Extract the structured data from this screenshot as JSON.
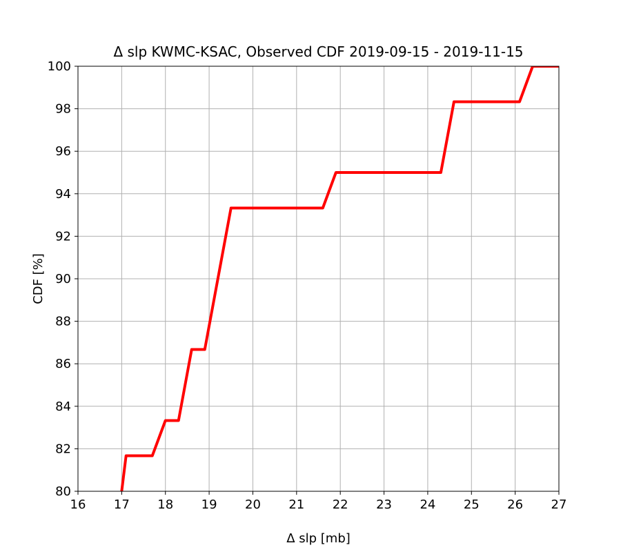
{
  "chart_data": {
    "type": "line",
    "title": "Δ slp KWMC-KSAC, Observed CDF 2019-09-15 - 2019-11-15",
    "xlabel": "Δ slp [mb]",
    "ylabel": "CDF [%]",
    "xlim": [
      16,
      27
    ],
    "ylim": [
      80,
      100
    ],
    "xticks": [
      16,
      17,
      18,
      19,
      20,
      21,
      22,
      23,
      24,
      25,
      26,
      27
    ],
    "yticks": [
      80,
      82,
      84,
      86,
      88,
      90,
      92,
      94,
      96,
      98,
      100
    ],
    "grid": true,
    "series": [
      {
        "color": "#ff0000",
        "x": [
          16.8,
          17.1,
          17.7,
          18.0,
          18.3,
          18.6,
          18.9,
          19.5,
          21.6,
          21.9,
          24.3,
          24.6,
          26.1,
          26.4,
          27.0
        ],
        "y": [
          76.67,
          81.67,
          81.67,
          83.33,
          83.33,
          86.67,
          86.67,
          93.33,
          93.33,
          95.0,
          95.0,
          98.33,
          98.33,
          100.0,
          100.0
        ]
      }
    ]
  }
}
